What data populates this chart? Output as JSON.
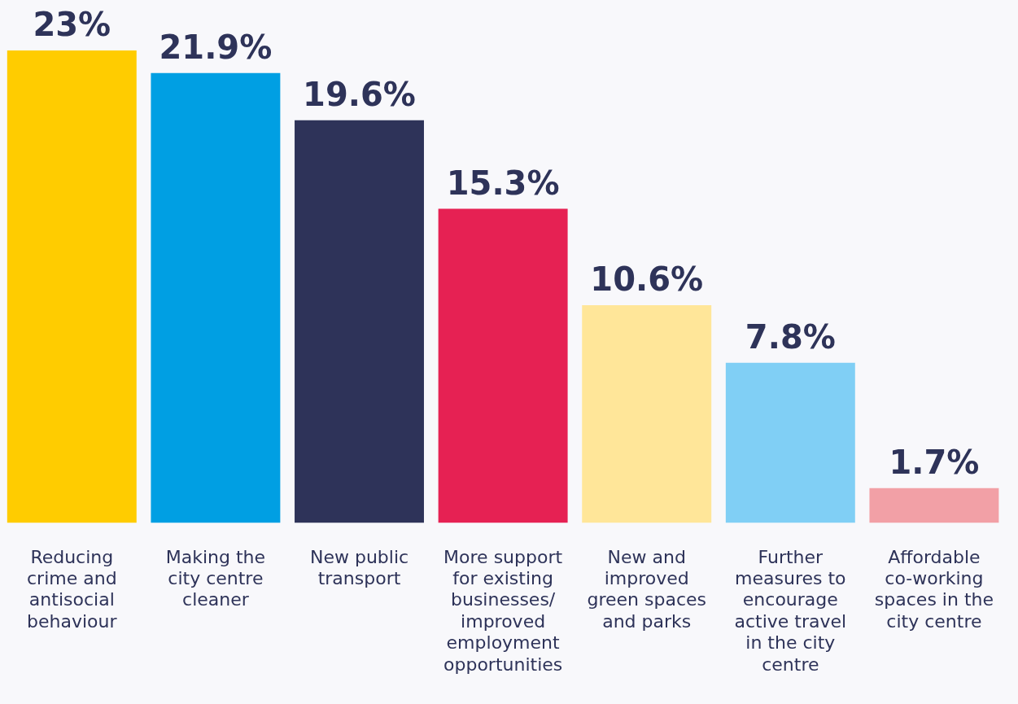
{
  "chart_data": {
    "type": "bar",
    "categories": [
      "Reducing crime and antisocial behaviour",
      "Making the city centre cleaner",
      "New public transport",
      "More support for existing businesses/ improved employment opportunities",
      "New and improved green spaces and parks",
      "Further measures to encourage active travel in the city centre",
      "Affordable co-working spaces in the city centre"
    ],
    "values": [
      23,
      21.9,
      19.6,
      15.3,
      10.6,
      7.8,
      1.7
    ],
    "value_labels": [
      "23%",
      "21.9%",
      "19.6%",
      "15.3%",
      "10.6%",
      "7.8%",
      "1.7%"
    ],
    "colors": [
      "#ffcc00",
      "#009fe3",
      "#2e3359",
      "#e62153",
      "#ffe699",
      "#80cff5",
      "#f2a0a6"
    ],
    "grid": false,
    "legend": false
  }
}
